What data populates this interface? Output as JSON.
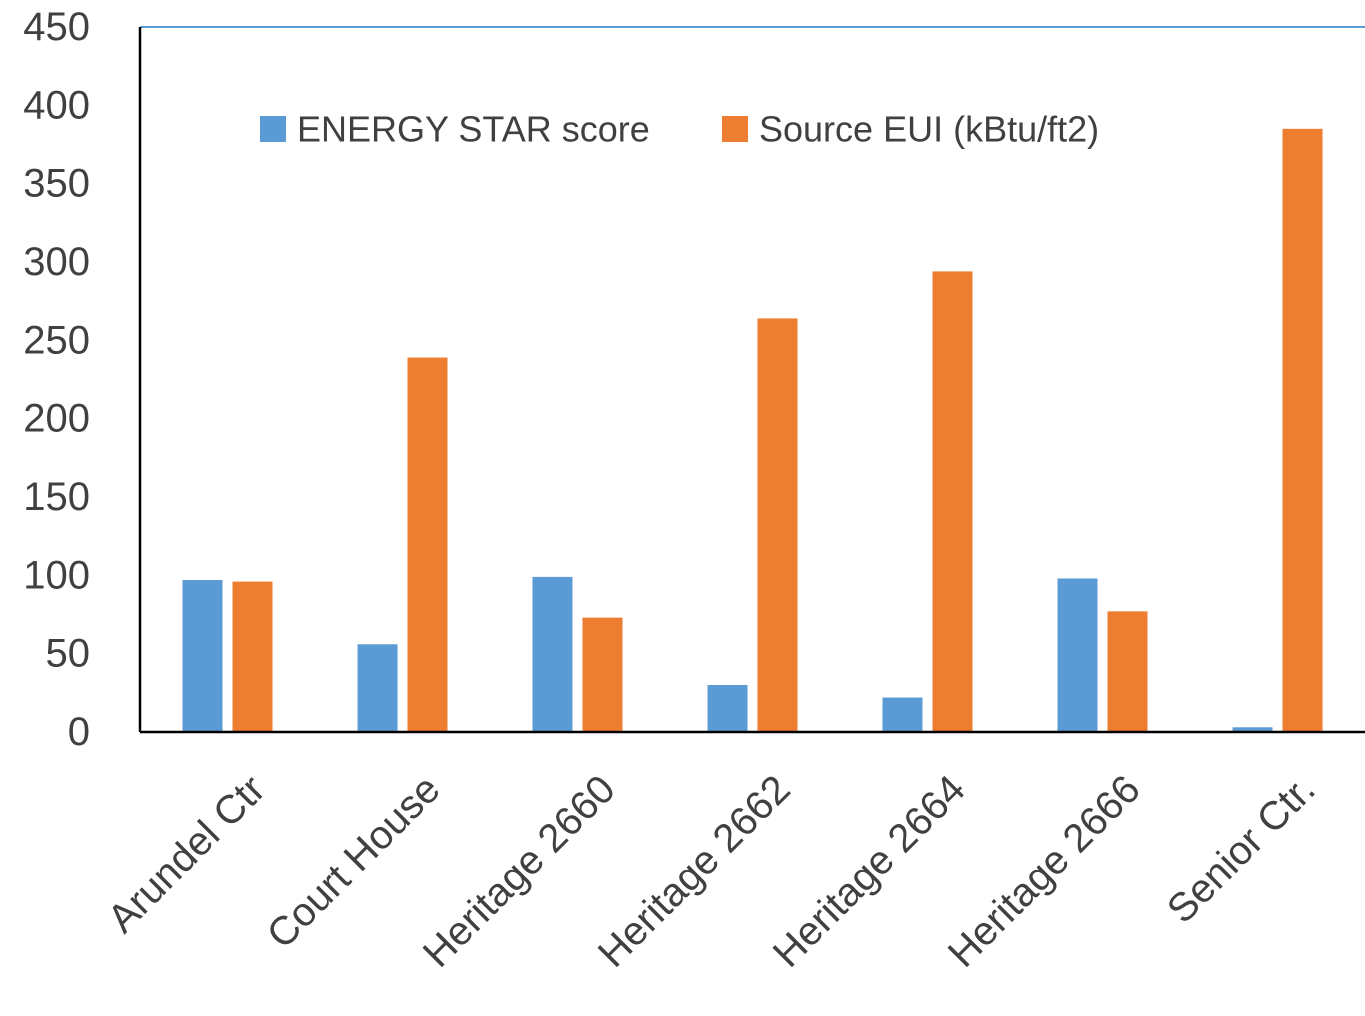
{
  "chart_data": {
    "type": "bar",
    "title": "",
    "xlabel": "",
    "ylabel": "",
    "ylim": [
      0,
      450
    ],
    "yticks": [
      0,
      50,
      100,
      150,
      200,
      250,
      300,
      350,
      400,
      450
    ],
    "categories": [
      "Arundel Ctr",
      "Court House",
      "Heritage 2660",
      "Heritage 2662",
      "Heritage 2664",
      "Heritage 2666",
      "Senior Ctr."
    ],
    "series": [
      {
        "name": "ENERGY STAR score",
        "color": "#5B9BD5",
        "values": [
          97,
          56,
          99,
          30,
          22,
          98,
          3
        ]
      },
      {
        "name": "Source EUI (kBtu/ft2)",
        "color": "#ED7D31",
        "values": [
          96,
          239,
          73,
          264,
          294,
          77,
          385
        ]
      }
    ],
    "legend_position": "top-center",
    "grid": false
  }
}
